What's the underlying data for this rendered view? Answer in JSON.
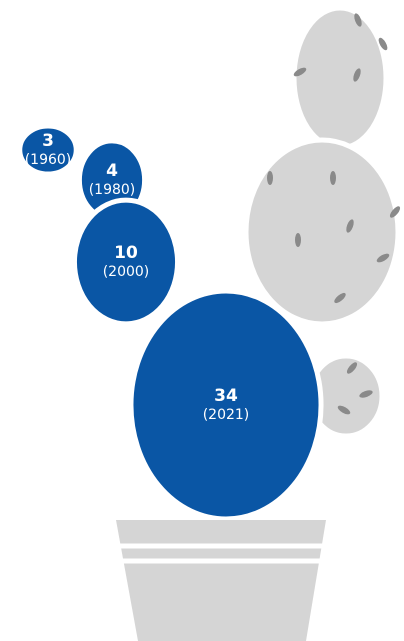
{
  "chart_data": {
    "type": "pictorial",
    "categories": [
      "(1960)",
      "(1980)",
      "(2000)",
      "(2021)"
    ],
    "values": [
      3,
      4,
      10,
      34
    ],
    "color": "#0a56a5"
  }
}
